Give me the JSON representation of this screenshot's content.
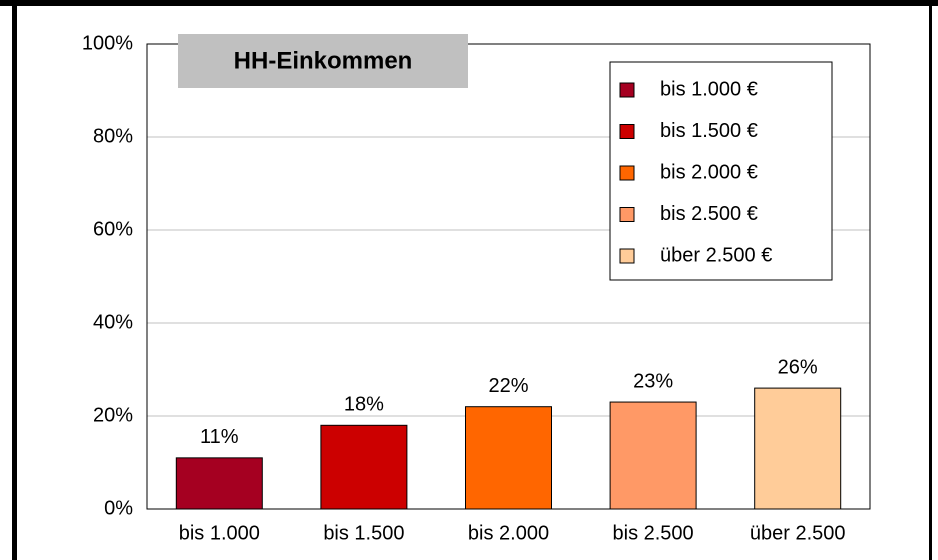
{
  "chart_data": {
    "type": "bar",
    "title": "HH-Einkommen",
    "categories": [
      "bis 1.000",
      "bis 1.500",
      "bis 2.000",
      "bis 2.500",
      "über 2.500"
    ],
    "values": [
      11,
      18,
      22,
      23,
      26
    ],
    "value_labels": [
      "11%",
      "18%",
      "22%",
      "23%",
      "26%"
    ],
    "colors": [
      "#a50021",
      "#cc0000",
      "#ff6600",
      "#ff9966",
      "#ffcc99"
    ],
    "legend": [
      "bis 1.000 €",
      "bis 1.500 €",
      "bis 2.000 €",
      "bis 2.500 €",
      "über 2.500 €"
    ],
    "ylim": [
      0,
      100
    ],
    "yticks": [
      {
        "value": 0,
        "label": "0%"
      },
      {
        "value": 20,
        "label": "20%"
      },
      {
        "value": 40,
        "label": "40%"
      },
      {
        "value": 60,
        "label": "60%"
      },
      {
        "value": 80,
        "label": "80%"
      },
      {
        "value": 100,
        "label": "100%"
      }
    ],
    "grid": true,
    "legend_position": "upper right"
  }
}
